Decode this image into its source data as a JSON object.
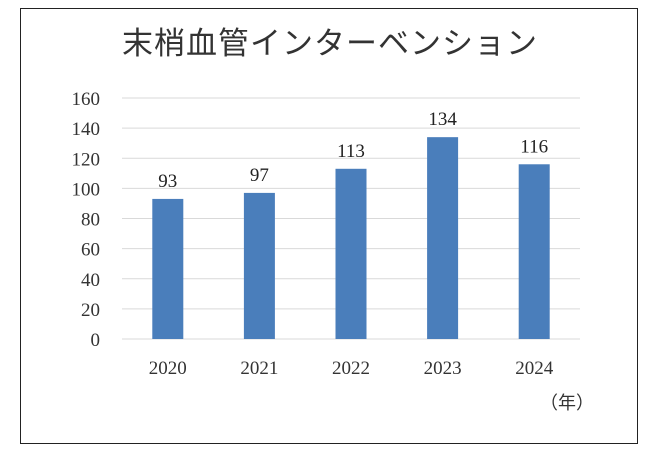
{
  "chart_data": {
    "type": "bar",
    "title": "末梢血管インターベンション",
    "categories": [
      "2020",
      "2021",
      "2022",
      "2023",
      "2024"
    ],
    "values": [
      93,
      97,
      113,
      134,
      116
    ],
    "data_labels": [
      "93",
      "97",
      "113",
      "134",
      "116"
    ],
    "x_unit_label": "（年）",
    "xlabel": "",
    "ylabel": "",
    "ylim": [
      0,
      160
    ],
    "y_ticks": [
      "0",
      "20",
      "40",
      "60",
      "80",
      "100",
      "120",
      "140",
      "160"
    ],
    "grid": true,
    "legend": "none",
    "bar_color": "#4a7ebb",
    "grid_color": "#d9d9d9"
  }
}
